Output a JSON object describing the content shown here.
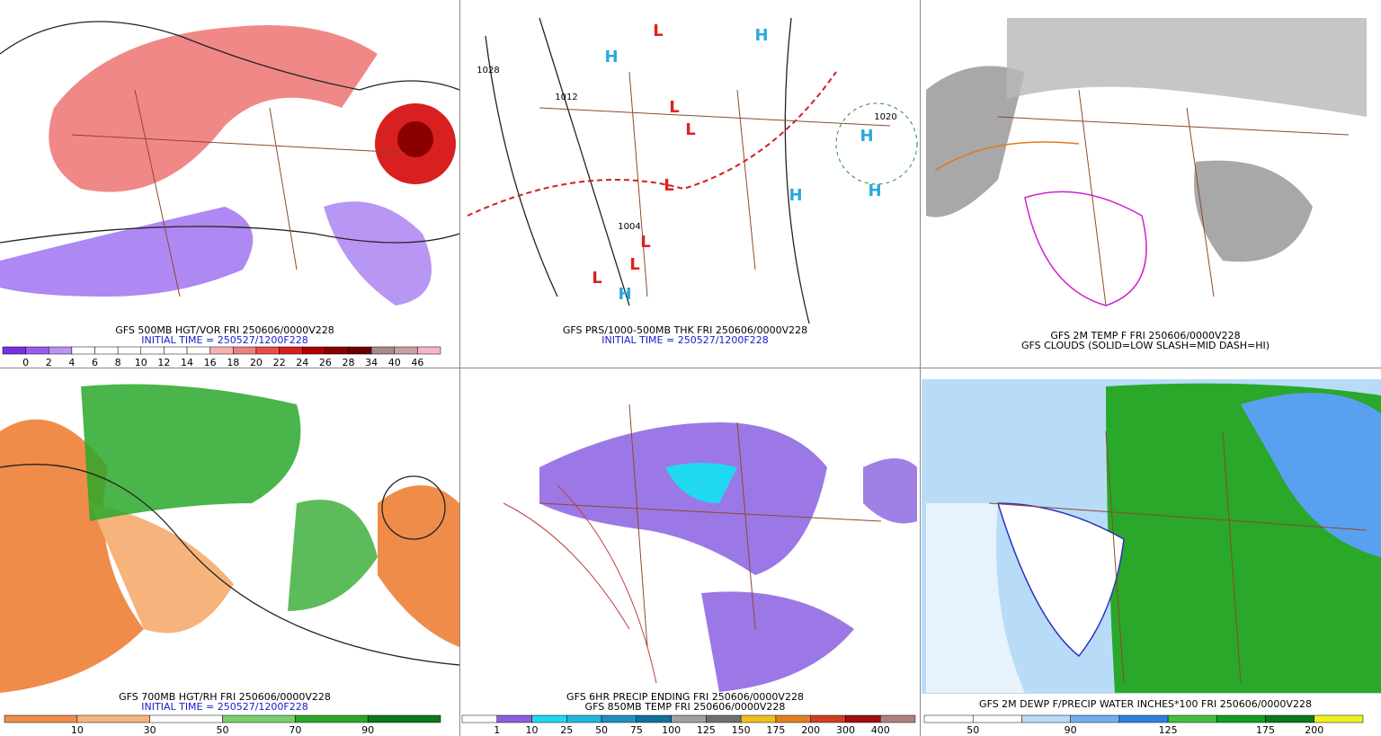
{
  "panels": [
    {
      "lines": [
        {
          "text": "GFS 500MB HGT/VOR FRI 250606/0000V228",
          "color": "#000000"
        },
        {
          "text": "INITIAL TIME = 250527/1200F228",
          "color": "#1a1acc"
        }
      ],
      "colorbar": {
        "labels": [
          "0",
          "2",
          "4",
          "6",
          "8",
          "10",
          "12",
          "14",
          "16",
          "18",
          "20",
          "22",
          "24",
          "26",
          "28",
          "34",
          "40",
          "46"
        ],
        "colors": [
          "#7a2ee8",
          "#9a5cf0",
          "#b994f4",
          "#ffffff",
          "#ffffff",
          "#ffffff",
          "#ffffff",
          "#ffffff",
          "#ffffff",
          "#f7b2b2",
          "#f08080",
          "#e84c4c",
          "#d81e1e",
          "#b00000",
          "#8a0000",
          "#6a0000",
          "#a88a8a",
          "#c8a0a0",
          "#f4b6c8"
        ]
      }
    },
    {
      "lines": [
        {
          "text": "GFS PRS/1000-500MB THK FRI 250606/0000V228",
          "color": "#000000"
        },
        {
          "text": "INITIAL TIME = 250527/1200F228",
          "color": "#1a1acc"
        }
      ],
      "labels": [
        "H",
        "H",
        "L",
        "L",
        "L",
        "L",
        "H",
        "H",
        "H",
        "L",
        "L",
        "L",
        "H",
        "1020",
        "1012",
        "1004",
        "1028"
      ]
    },
    {
      "lines": [
        {
          "text": "GFS 2M TEMP F FRI 250606/0000V228",
          "color": "#000000"
        },
        {
          "text": "GFS CLOUDS (SOLID=LOW SLASH=MID DASH=HI)",
          "color": "#000000"
        }
      ]
    },
    {
      "lines": [
        {
          "text": "GFS 700MB HGT/RH FRI 250606/0000V228",
          "color": "#000000"
        },
        {
          "text": "INITIAL TIME = 250527/1200F228",
          "color": "#1a1acc"
        }
      ],
      "colorbar": {
        "labels": [
          "10",
          "30",
          "50",
          "70",
          "90"
        ],
        "colors": [
          "#f08c4a",
          "#f6b47c",
          "#ffffff",
          "#7ad070",
          "#2aa82a",
          "#0a7a1a"
        ]
      }
    },
    {
      "lines": [
        {
          "text": "GFS 6HR PRECIP ENDING FRI 250606/0000V228",
          "color": "#000000"
        },
        {
          "text": "GFS 850MB TEMP FRI 250606/0000V228",
          "color": "#000000"
        }
      ],
      "colorbar": {
        "labels": [
          "1",
          "10",
          "25",
          "50",
          "75",
          "100",
          "125",
          "150",
          "175",
          "200",
          "300",
          "400"
        ],
        "colors": [
          "#ffffff",
          "#8a60e0",
          "#20d8f0",
          "#20b8e0",
          "#2090c0",
          "#1070a0",
          "#a0a0a0",
          "#707070",
          "#f0c020",
          "#e08020",
          "#d04020",
          "#a01010",
          "#b08080"
        ]
      }
    },
    {
      "lines": [
        {
          "text": "GFS 2M DEWP F/PRECIP WATER INCHES*100 FRI 250606/0000V228",
          "color": "#000000"
        }
      ],
      "colorbar": {
        "labels": [
          "50",
          "90",
          "125",
          "175",
          "200"
        ],
        "colors": [
          "#ffffff",
          "#ffffff",
          "#b8dcf8",
          "#70b0f0",
          "#3080e0",
          "#40c040",
          "#10a020",
          "#0a7a1a",
          "#f0f020"
        ]
      }
    }
  ]
}
